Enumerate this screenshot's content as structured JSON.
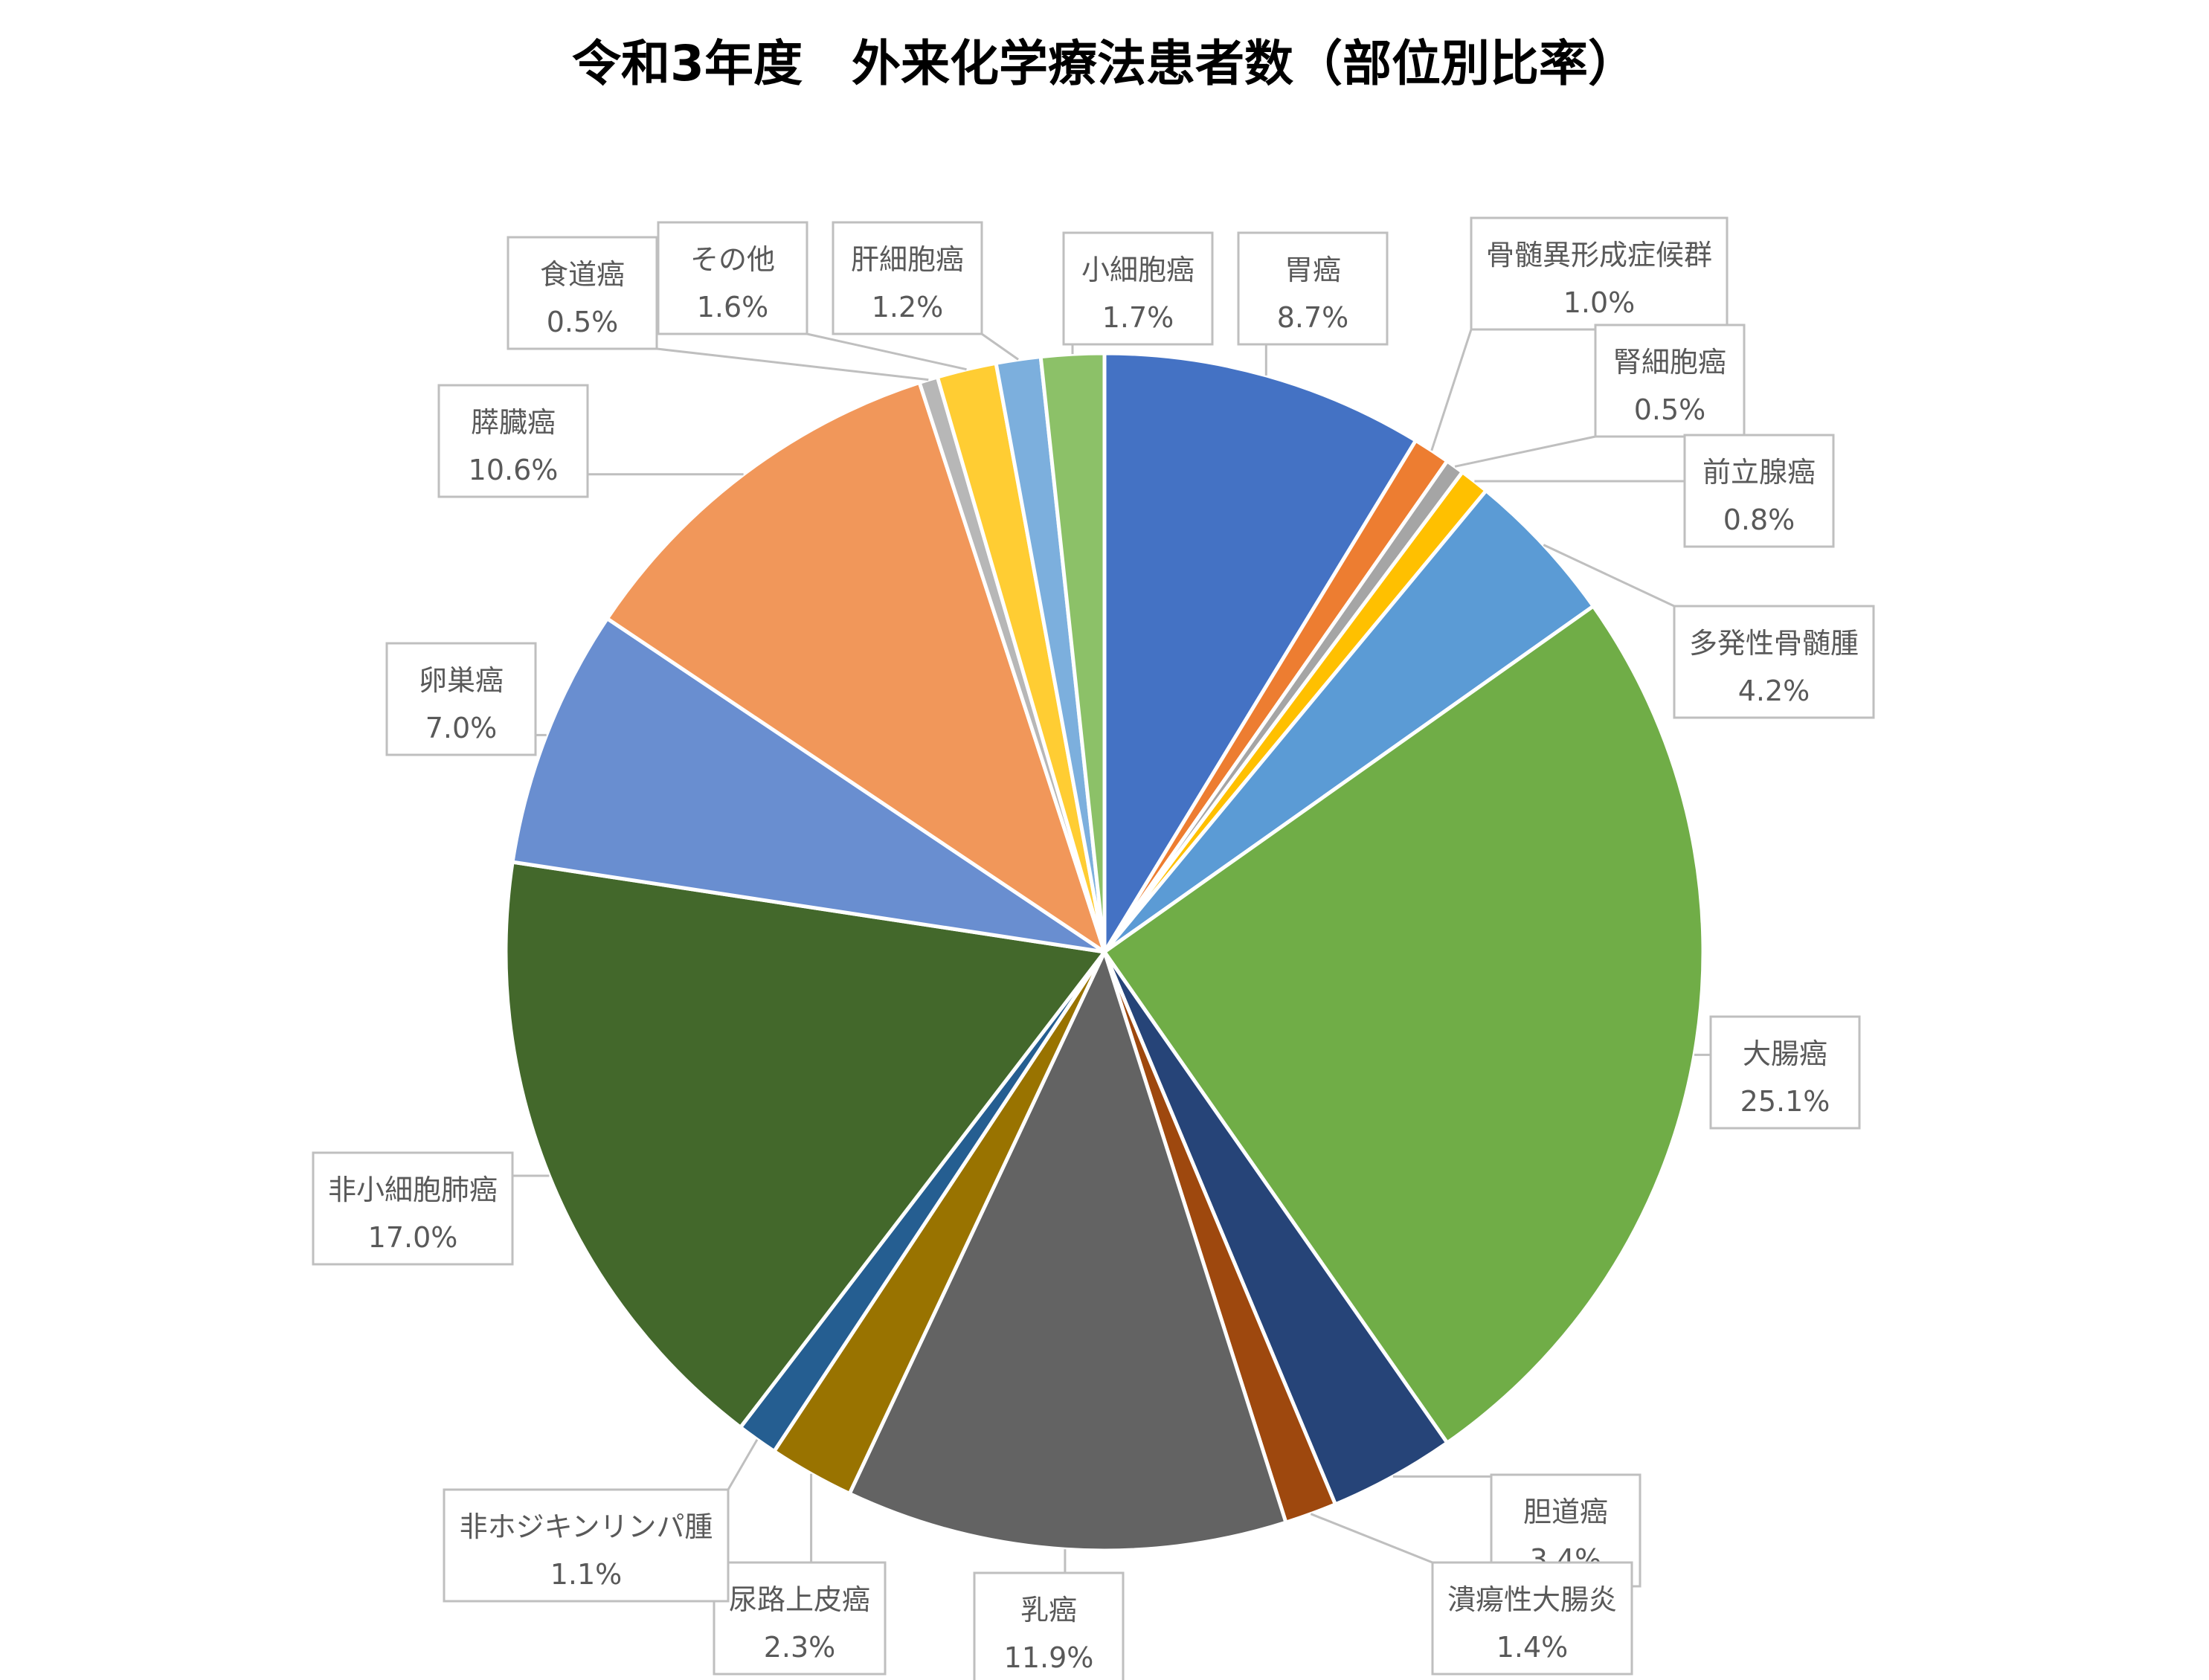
{
  "chart_data": {
    "type": "pie",
    "title": "令和3年度　外来化学療法患者数（部位別比率）",
    "slices": [
      {
        "label": "胃癌",
        "value": 8.7,
        "display": "8.7%",
        "color": "#4472C4"
      },
      {
        "label": "骨髄異形成症候群",
        "value": 1.0,
        "display": "1.0%",
        "color": "#ED7D31"
      },
      {
        "label": "腎細胞癌",
        "value": 0.5,
        "display": "0.5%",
        "color": "#A5A5A5"
      },
      {
        "label": "前立腺癌",
        "value": 0.8,
        "display": "0.8%",
        "color": "#FFC000"
      },
      {
        "label": "多発性骨髄腫",
        "value": 4.2,
        "display": "4.2%",
        "color": "#5B9BD5"
      },
      {
        "label": "大腸癌",
        "value": 25.1,
        "display": "25.1%",
        "color": "#70AD47"
      },
      {
        "label": "胆道癌",
        "value": 3.4,
        "display": "3.4%",
        "color": "#264478"
      },
      {
        "label": "潰瘍性大腸炎",
        "value": 1.4,
        "display": "1.4%",
        "color": "#9E480E"
      },
      {
        "label": "乳癌",
        "value": 11.9,
        "display": "11.9%",
        "color": "#636363"
      },
      {
        "label": "尿路上皮癌",
        "value": 2.3,
        "display": "2.3%",
        "color": "#997300"
      },
      {
        "label": "非ホジキンリンパ腫",
        "value": 1.1,
        "display": "1.1%",
        "color": "#255E91"
      },
      {
        "label": "非小細胞肺癌",
        "value": 17.0,
        "display": "17.0%",
        "color": "#43682B"
      },
      {
        "label": "卵巣癌",
        "value": 7.0,
        "display": "7.0%",
        "color": "#698ED0"
      },
      {
        "label": "膵臓癌",
        "value": 10.6,
        "display": "10.6%",
        "color": "#F1975A"
      },
      {
        "label": "食道癌",
        "value": 0.5,
        "display": "0.5%",
        "color": "#B7B7B7"
      },
      {
        "label": "その他",
        "value": 1.6,
        "display": "1.6%",
        "color": "#FFCD33"
      },
      {
        "label": "肝細胞癌",
        "value": 1.2,
        "display": "1.2%",
        "color": "#7CAFDD"
      },
      {
        "label": "小細胞癌",
        "value": 1.7,
        "display": "1.7%",
        "color": "#8CC168"
      }
    ]
  }
}
